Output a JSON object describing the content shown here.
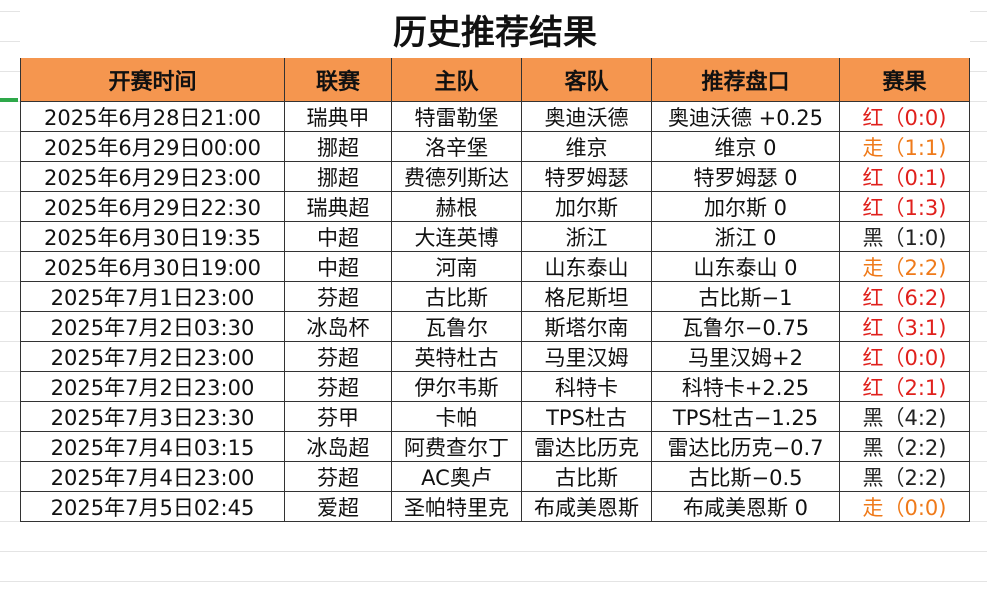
{
  "title": "历史推荐结果",
  "table": {
    "header": [
      "开赛时间",
      "联赛",
      "主队",
      "客队",
      "推荐盘口",
      "赛果"
    ],
    "rows": [
      [
        "2025年6月28日21:00",
        "瑞典甲",
        "特雷勒堡",
        "奥迪沃德",
        "奥迪沃德 +0.25",
        "红（0:0)"
      ],
      [
        "2025年6月29日00:00",
        "挪超",
        "洛辛堡",
        "维京",
        "维京 0",
        "走（1:1)"
      ],
      [
        "2025年6月29日23:00",
        "挪超",
        "费德列斯达",
        "特罗姆瑟",
        "特罗姆瑟 0",
        "红（0:1)"
      ],
      [
        "2025年6月29日22:30",
        "瑞典超",
        "赫根",
        "加尔斯",
        "加尔斯 0",
        "红（1:3)"
      ],
      [
        "2025年6月30日19:35",
        "中超",
        "大连英博",
        "浙江",
        "浙江 0",
        "黑（1:0)"
      ],
      [
        "2025年6月30日19:00",
        "中超",
        "河南",
        "山东泰山",
        "山东泰山 0",
        "走（2:2)"
      ],
      [
        "2025年7月1日23:00",
        "芬超",
        "古比斯",
        "格尼斯坦",
        "古比斯−1",
        "红（6:2)"
      ],
      [
        "2025年7月2日03:30",
        "冰岛杯",
        "瓦鲁尔",
        "斯塔尔南",
        "瓦鲁尔−0.75",
        "红（3:1)"
      ],
      [
        "2025年7月2日23:00",
        "芬超",
        "英特杜古",
        "马里汉姆",
        "马里汉姆+2",
        "红（0:0)"
      ],
      [
        "2025年7月2日23:00",
        "芬超",
        "伊尔韦斯",
        "科特卡",
        "科特卡+2.25",
        "红（2:1)"
      ],
      [
        "2025年7月3日23:30",
        "芬甲",
        "卡帕",
        "TPS杜古",
        "TPS杜古−1.25",
        "黑（4:2)"
      ],
      [
        "2025年7月4日03:15",
        "冰岛超",
        "阿费查尔丁",
        "雷达比历克",
        "雷达比历克−0.7",
        "黑（2:2)"
      ],
      [
        "2025年7月4日23:00",
        "芬超",
        "AC奥卢",
        "古比斯",
        "古比斯−0.5",
        "黑（2:2)"
      ],
      [
        "2025年7月5日02:45",
        "爱超",
        "圣帕特里克",
        "布咸美恩斯",
        "布咸美恩斯 0",
        "走（0:0)"
      ]
    ],
    "result_colors": [
      "#e0201c",
      "#ef7a1a",
      "#e0201c",
      "#e0201c",
      "#222222",
      "#ef7a1a",
      "#e0201c",
      "#e0201c",
      "#e0201c",
      "#e0201c",
      "#222222",
      "#222222",
      "#222222",
      "#ef7a1a"
    ],
    "header_color": "#f5964f"
  }
}
